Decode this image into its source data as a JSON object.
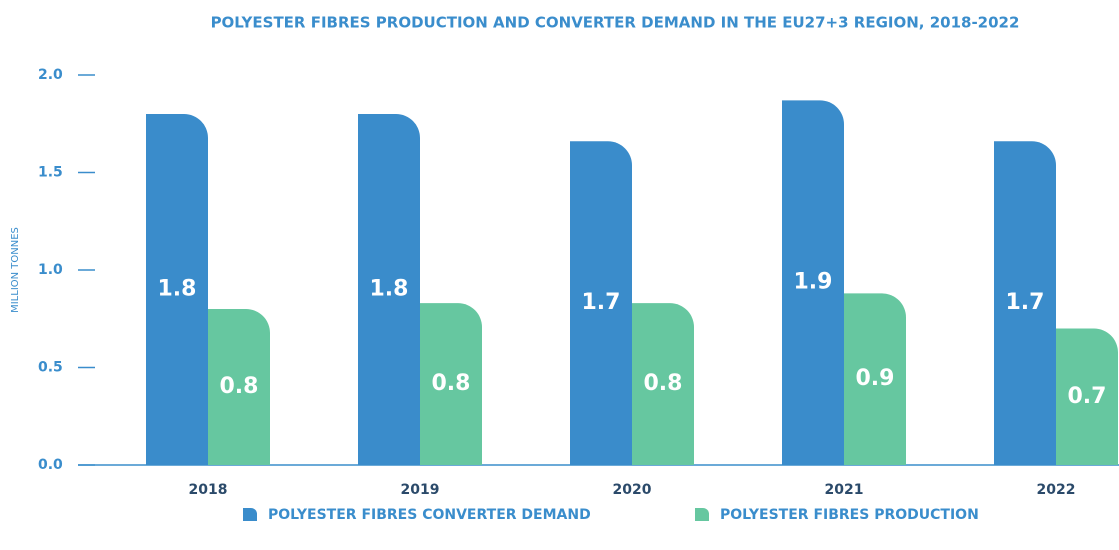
{
  "chart_data": {
    "type": "bar",
    "title": "POLYESTER FIBRES PRODUCTION AND CONVERTER DEMAND IN THE EU27+3 REGION, 2018-2022",
    "y_label": "MILLION TONNES",
    "categories": [
      "2018",
      "2019",
      "2020",
      "2021",
      "2022"
    ],
    "series": [
      {
        "name": "POLYESTER FIBRES CONVERTER DEMAND",
        "color": "#3a8ccb",
        "values": [
          1.8,
          1.8,
          1.66,
          1.87,
          1.66
        ],
        "value_labels": [
          "1.8",
          "1.8",
          "1.7",
          "1.9",
          "1.7"
        ]
      },
      {
        "name": "POLYESTER FIBRES PRODUCTION",
        "color": "#66c7a0",
        "values": [
          0.8,
          0.83,
          0.83,
          0.88,
          0.7
        ],
        "value_labels": [
          "0.8",
          "0.8",
          "0.8",
          "0.9",
          "0.7"
        ]
      }
    ],
    "ylim": [
      0,
      2.0
    ],
    "yticks": [
      {
        "value": 0,
        "label": "0.0"
      },
      {
        "value": 0.5,
        "label": "0.5"
      },
      {
        "value": 1.0,
        "label": "1.0"
      },
      {
        "value": 1.5,
        "label": "1.5"
      },
      {
        "value": 2.0,
        "label": "2.0"
      }
    ]
  }
}
